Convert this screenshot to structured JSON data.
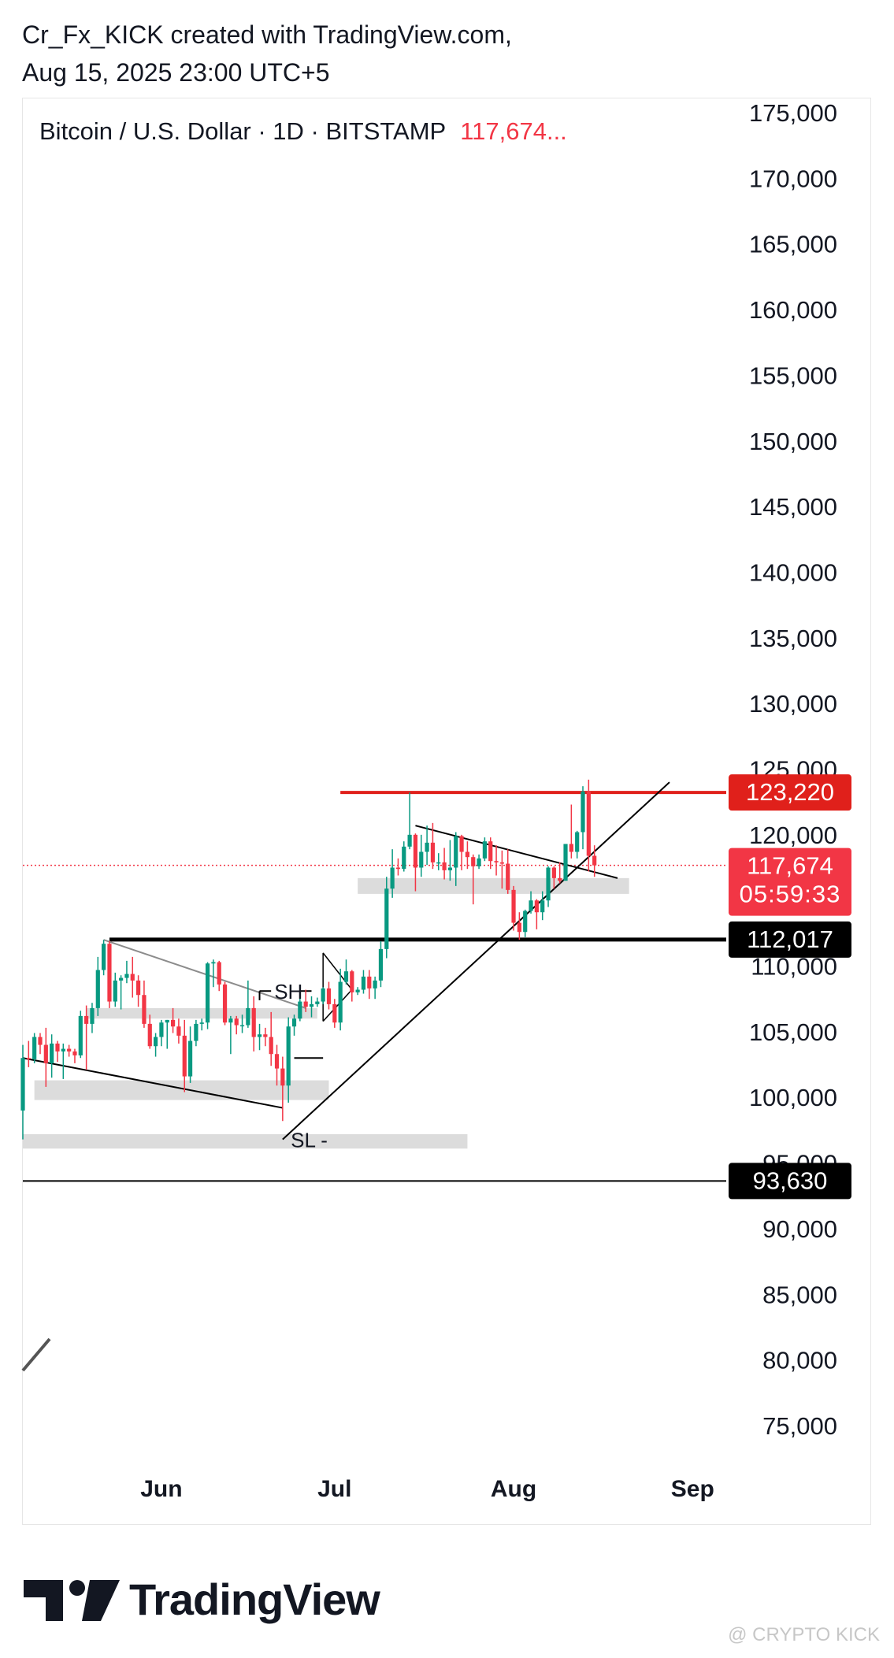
{
  "header": {
    "line1": "Cr_Fx_KICK created with TradingView.com,",
    "line2": "Aug 15, 2025 23:00 UTC+5"
  },
  "watermark": "@ CRYPTO KICK",
  "brand": "TradingView",
  "colors": {
    "up": "#089981",
    "down": "#f23645",
    "accent_red": "#e0201b",
    "black": "#000000"
  },
  "chart_data": {
    "type": "candlestick",
    "symbol_line": "Bitcoin / U.S. Dollar · 1D · BITSTAMP",
    "last_price_label": "117,674...",
    "y_axis": {
      "ticks": [
        175000,
        170000,
        165000,
        160000,
        155000,
        150000,
        145000,
        140000,
        135000,
        130000,
        125000,
        120000,
        115000,
        110000,
        105000,
        100000,
        95000,
        90000,
        85000,
        80000,
        75000
      ],
      "tick_labels": [
        "175,000",
        "170,000",
        "165,000",
        "160,000",
        "155,000",
        "150,000",
        "145,000",
        "140,000",
        "135,000",
        "130,000",
        "125,000",
        "120,000",
        "115,000",
        "110,000",
        "105,000",
        "100,000",
        "95,000",
        "90,000",
        "85,000",
        "80,000",
        "75,000"
      ],
      "range": [
        72000,
        176500
      ]
    },
    "x_axis": {
      "ticks": [
        {
          "date": "2025-06-01",
          "label": "Jun"
        },
        {
          "date": "2025-07-01",
          "label": "Jul"
        },
        {
          "date": "2025-08-01",
          "label": "Aug"
        },
        {
          "date": "2025-09-01",
          "label": "Sep"
        }
      ],
      "range": [
        "2025-05-08",
        "2025-09-16"
      ]
    },
    "grid": false,
    "price_labels": [
      {
        "name": "resistance",
        "value": 123220,
        "label": "123,220",
        "color": "#e0201b"
      },
      {
        "name": "last-price",
        "value": 117674,
        "label": "117,674",
        "sublabel": "05:59:33",
        "color": "#f23645"
      },
      {
        "name": "support-1",
        "value": 112017,
        "label": "112,017",
        "color": "#000000"
      },
      {
        "name": "support-2",
        "value": 93630,
        "label": "93,630",
        "color": "#000000"
      }
    ],
    "annotations": [
      {
        "name": "sh-label",
        "text": "SH"
      },
      {
        "name": "sl-label",
        "text": "SL"
      }
    ],
    "series": [
      {
        "date": "2025-05-08",
        "o": 99000,
        "h": 104000,
        "c": 103000,
        "l": 96800
      },
      {
        "date": "2025-05-09",
        "o": 103000,
        "h": 104300,
        "c": 102900,
        "l": 102300
      },
      {
        "date": "2025-05-10",
        "o": 102900,
        "h": 104900,
        "c": 104600,
        "l": 102600
      },
      {
        "date": "2025-05-11",
        "o": 104600,
        "h": 104900,
        "c": 104000,
        "l": 103300
      },
      {
        "date": "2025-05-12",
        "o": 104000,
        "h": 105300,
        "c": 102600,
        "l": 100800
      },
      {
        "date": "2025-05-13",
        "o": 102600,
        "h": 104800,
        "c": 104100,
        "l": 101500
      },
      {
        "date": "2025-05-14",
        "o": 104100,
        "h": 104300,
        "c": 103500,
        "l": 102700
      },
      {
        "date": "2025-05-15",
        "o": 103500,
        "h": 104100,
        "c": 103700,
        "l": 101400
      },
      {
        "date": "2025-05-16",
        "o": 103700,
        "h": 104000,
        "c": 103500,
        "l": 103100
      },
      {
        "date": "2025-05-17",
        "o": 103500,
        "h": 103700,
        "c": 103200,
        "l": 102600
      },
      {
        "date": "2025-05-18",
        "o": 103200,
        "h": 106600,
        "c": 106200,
        "l": 103000
      },
      {
        "date": "2025-05-19",
        "o": 106200,
        "h": 107000,
        "c": 105600,
        "l": 102100
      },
      {
        "date": "2025-05-20",
        "o": 105600,
        "h": 107200,
        "c": 106800,
        "l": 104900
      },
      {
        "date": "2025-05-21",
        "o": 106800,
        "h": 110700,
        "c": 109700,
        "l": 106200
      },
      {
        "date": "2025-05-22",
        "o": 109700,
        "h": 112000,
        "c": 111700,
        "l": 109300
      },
      {
        "date": "2025-05-23",
        "o": 111700,
        "h": 111900,
        "c": 107300,
        "l": 106800
      },
      {
        "date": "2025-05-24",
        "o": 107300,
        "h": 109500,
        "c": 108900,
        "l": 106900
      },
      {
        "date": "2025-05-25",
        "o": 108900,
        "h": 109300,
        "c": 109100,
        "l": 106700
      },
      {
        "date": "2025-05-26",
        "o": 109100,
        "h": 110400,
        "c": 109400,
        "l": 108700
      },
      {
        "date": "2025-05-27",
        "o": 109400,
        "h": 110700,
        "c": 108900,
        "l": 107600
      },
      {
        "date": "2025-05-28",
        "o": 108900,
        "h": 109300,
        "c": 107800,
        "l": 106900
      },
      {
        "date": "2025-05-29",
        "o": 107800,
        "h": 108900,
        "c": 105600,
        "l": 105300
      },
      {
        "date": "2025-05-30",
        "o": 105600,
        "h": 106300,
        "c": 103900,
        "l": 103700
      },
      {
        "date": "2025-05-31",
        "o": 103900,
        "h": 104900,
        "c": 104600,
        "l": 103100
      },
      {
        "date": "2025-06-01",
        "o": 104600,
        "h": 105900,
        "c": 105700,
        "l": 103900
      },
      {
        "date": "2025-06-02",
        "o": 105700,
        "h": 105900,
        "c": 105900,
        "l": 103700
      },
      {
        "date": "2025-06-03",
        "o": 105900,
        "h": 106800,
        "c": 105400,
        "l": 104900
      },
      {
        "date": "2025-06-04",
        "o": 105400,
        "h": 106000,
        "c": 104700,
        "l": 104100
      },
      {
        "date": "2025-06-05",
        "o": 104700,
        "h": 105900,
        "c": 101600,
        "l": 100400
      },
      {
        "date": "2025-06-06",
        "o": 101600,
        "h": 105400,
        "c": 104300,
        "l": 101100
      },
      {
        "date": "2025-06-07",
        "o": 104300,
        "h": 105900,
        "c": 105600,
        "l": 103900
      },
      {
        "date": "2025-06-08",
        "o": 105600,
        "h": 106000,
        "c": 105700,
        "l": 105100
      },
      {
        "date": "2025-06-09",
        "o": 105700,
        "h": 110300,
        "c": 110200,
        "l": 105200
      },
      {
        "date": "2025-06-10",
        "o": 110200,
        "h": 110500,
        "c": 110300,
        "l": 108400
      },
      {
        "date": "2025-06-11",
        "o": 110300,
        "h": 110400,
        "c": 108600,
        "l": 108100
      },
      {
        "date": "2025-06-12",
        "o": 108600,
        "h": 108800,
        "c": 105700,
        "l": 105500
      },
      {
        "date": "2025-06-13",
        "o": 105700,
        "h": 106200,
        "c": 106000,
        "l": 103300
      },
      {
        "date": "2025-06-14",
        "o": 106000,
        "h": 106200,
        "c": 105500,
        "l": 104800
      },
      {
        "date": "2025-06-15",
        "o": 105500,
        "h": 106300,
        "c": 105500,
        "l": 104900
      },
      {
        "date": "2025-06-16",
        "o": 105500,
        "h": 108900,
        "c": 106800,
        "l": 105300
      },
      {
        "date": "2025-06-17",
        "o": 106800,
        "h": 107700,
        "c": 104600,
        "l": 103500
      },
      {
        "date": "2025-06-18",
        "o": 104600,
        "h": 105600,
        "c": 104800,
        "l": 103600
      },
      {
        "date": "2025-06-19",
        "o": 104800,
        "h": 105300,
        "c": 104600,
        "l": 103900
      },
      {
        "date": "2025-06-20",
        "o": 104600,
        "h": 106500,
        "c": 103300,
        "l": 102400
      },
      {
        "date": "2025-06-21",
        "o": 103300,
        "h": 104000,
        "c": 102200,
        "l": 100900
      },
      {
        "date": "2025-06-22",
        "o": 102200,
        "h": 103100,
        "c": 100900,
        "l": 98200
      },
      {
        "date": "2025-06-23",
        "o": 100900,
        "h": 106100,
        "c": 105400,
        "l": 99600
      },
      {
        "date": "2025-06-24",
        "o": 105400,
        "h": 106300,
        "c": 106000,
        "l": 104700
      },
      {
        "date": "2025-06-25",
        "o": 106000,
        "h": 108000,
        "c": 107300,
        "l": 105800
      },
      {
        "date": "2025-06-26",
        "o": 107300,
        "h": 108200,
        "c": 106900,
        "l": 106500
      },
      {
        "date": "2025-06-27",
        "o": 106900,
        "h": 107700,
        "c": 107100,
        "l": 106100
      },
      {
        "date": "2025-06-28",
        "o": 107100,
        "h": 107600,
        "c": 107300,
        "l": 106900
      },
      {
        "date": "2025-06-29",
        "o": 107300,
        "h": 108400,
        "c": 108300,
        "l": 107100
      },
      {
        "date": "2025-06-30",
        "o": 108300,
        "h": 108800,
        "c": 107100,
        "l": 106700
      },
      {
        "date": "2025-07-01",
        "o": 107100,
        "h": 107500,
        "c": 105700,
        "l": 105300
      },
      {
        "date": "2025-07-02",
        "o": 105700,
        "h": 109800,
        "c": 108800,
        "l": 105100
      },
      {
        "date": "2025-07-03",
        "o": 108800,
        "h": 110500,
        "c": 109600,
        "l": 108600
      },
      {
        "date": "2025-07-04",
        "o": 109600,
        "h": 109700,
        "c": 108000,
        "l": 107300
      },
      {
        "date": "2025-07-05",
        "o": 108000,
        "h": 108400,
        "c": 108200,
        "l": 107800
      },
      {
        "date": "2025-07-06",
        "o": 108200,
        "h": 109700,
        "c": 109200,
        "l": 107900
      },
      {
        "date": "2025-07-07",
        "o": 109200,
        "h": 109700,
        "c": 108300,
        "l": 107500
      },
      {
        "date": "2025-07-08",
        "o": 108300,
        "h": 109200,
        "c": 108900,
        "l": 107500
      },
      {
        "date": "2025-07-09",
        "o": 108900,
        "h": 111900,
        "c": 111300,
        "l": 108400
      },
      {
        "date": "2025-07-10",
        "o": 111300,
        "h": 116800,
        "c": 115900,
        "l": 110600
      },
      {
        "date": "2025-07-11",
        "o": 115900,
        "h": 118900,
        "c": 117500,
        "l": 115200
      },
      {
        "date": "2025-07-12",
        "o": 117500,
        "h": 118200,
        "c": 117400,
        "l": 116900
      },
      {
        "date": "2025-07-13",
        "o": 117400,
        "h": 119500,
        "c": 119100,
        "l": 117200
      },
      {
        "date": "2025-07-14",
        "o": 119100,
        "h": 123220,
        "c": 120000,
        "l": 118900
      },
      {
        "date": "2025-07-15",
        "o": 120000,
        "h": 120100,
        "c": 117500,
        "l": 115700
      },
      {
        "date": "2025-07-16",
        "o": 117500,
        "h": 120000,
        "c": 118700,
        "l": 116800
      },
      {
        "date": "2025-07-17",
        "o": 118700,
        "h": 120700,
        "c": 119400,
        "l": 117700
      },
      {
        "date": "2025-07-18",
        "o": 119400,
        "h": 120900,
        "c": 117900,
        "l": 117400
      },
      {
        "date": "2025-07-19",
        "o": 117900,
        "h": 118600,
        "c": 117900,
        "l": 117300
      },
      {
        "date": "2025-07-20",
        "o": 117900,
        "h": 119000,
        "c": 117300,
        "l": 116600
      },
      {
        "date": "2025-07-21",
        "o": 117300,
        "h": 119600,
        "c": 117500,
        "l": 116500
      },
      {
        "date": "2025-07-22",
        "o": 117500,
        "h": 120200,
        "c": 119900,
        "l": 116100
      },
      {
        "date": "2025-07-23",
        "o": 119900,
        "h": 120000,
        "c": 118700,
        "l": 117300
      },
      {
        "date": "2025-07-24",
        "o": 118700,
        "h": 119500,
        "c": 118300,
        "l": 117400
      },
      {
        "date": "2025-07-25",
        "o": 118300,
        "h": 118500,
        "c": 117600,
        "l": 114700
      },
      {
        "date": "2025-07-26",
        "o": 117600,
        "h": 118500,
        "c": 118200,
        "l": 117400
      },
      {
        "date": "2025-07-27",
        "o": 118200,
        "h": 119800,
        "c": 119500,
        "l": 118000
      },
      {
        "date": "2025-07-28",
        "o": 119500,
        "h": 119800,
        "c": 118000,
        "l": 117400
      },
      {
        "date": "2025-07-29",
        "o": 118000,
        "h": 119200,
        "c": 117900,
        "l": 116900
      },
      {
        "date": "2025-07-30",
        "o": 117900,
        "h": 118800,
        "c": 117800,
        "l": 115900
      },
      {
        "date": "2025-07-31",
        "o": 117800,
        "h": 118900,
        "c": 115800,
        "l": 115500
      },
      {
        "date": "2025-08-01",
        "o": 115800,
        "h": 116100,
        "c": 113300,
        "l": 112700
      },
      {
        "date": "2025-08-02",
        "o": 113300,
        "h": 114100,
        "c": 112600,
        "l": 112000
      },
      {
        "date": "2025-08-03",
        "o": 112600,
        "h": 114300,
        "c": 114200,
        "l": 112200
      },
      {
        "date": "2025-08-04",
        "o": 114200,
        "h": 115700,
        "c": 115000,
        "l": 114000
      },
      {
        "date": "2025-08-05",
        "o": 115000,
        "h": 115100,
        "c": 114100,
        "l": 112800
      },
      {
        "date": "2025-08-06",
        "o": 114100,
        "h": 115700,
        "c": 115000,
        "l": 113500
      },
      {
        "date": "2025-08-07",
        "o": 115000,
        "h": 117600,
        "c": 117500,
        "l": 114500
      },
      {
        "date": "2025-08-08",
        "o": 117500,
        "h": 117600,
        "c": 116700,
        "l": 115900
      },
      {
        "date": "2025-08-09",
        "o": 116700,
        "h": 117900,
        "c": 116500,
        "l": 116300
      },
      {
        "date": "2025-08-10",
        "o": 116500,
        "h": 119300,
        "c": 119300,
        "l": 116500
      },
      {
        "date": "2025-08-11",
        "o": 119300,
        "h": 122300,
        "c": 118700,
        "l": 118200
      },
      {
        "date": "2025-08-12",
        "o": 118700,
        "h": 120300,
        "c": 120200,
        "l": 118200
      },
      {
        "date": "2025-08-13",
        "o": 120200,
        "h": 123700,
        "c": 123300,
        "l": 118900
      },
      {
        "date": "2025-08-14",
        "o": 123300,
        "h": 124200,
        "c": 118400,
        "l": 117200
      },
      {
        "date": "2025-08-15",
        "o": 118400,
        "h": 119200,
        "c": 117674,
        "l": 116800
      }
    ]
  }
}
